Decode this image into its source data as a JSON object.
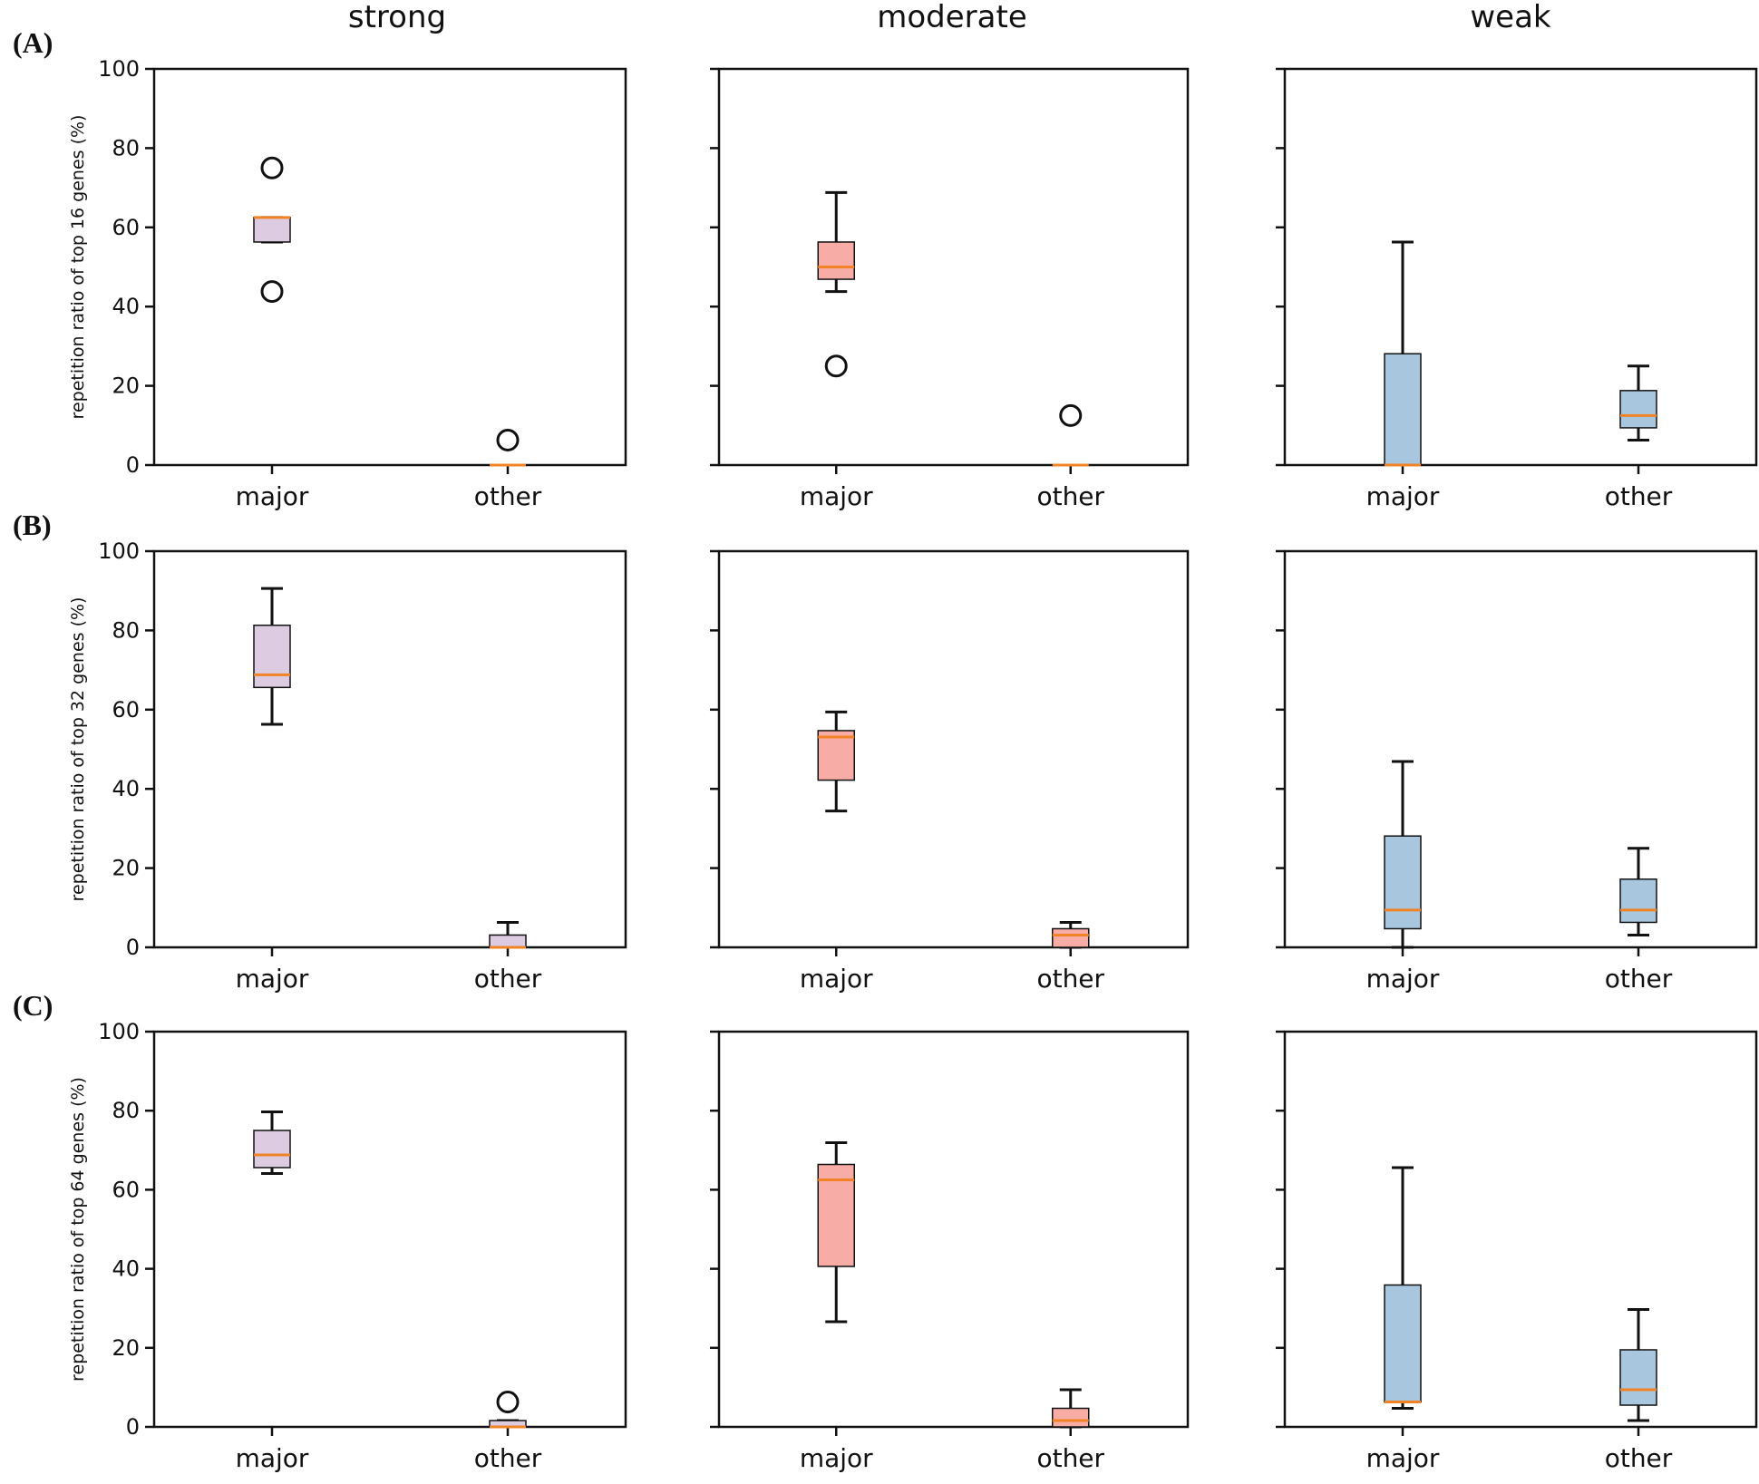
{
  "col_titles": [
    "strong",
    "moderate",
    "weak"
  ],
  "row_labels": [
    "(A)",
    "(B)",
    "(C)"
  ],
  "colors": {
    "strong": "#dccbe1",
    "moderate": "#f7aca6",
    "weak": "#a9c6df",
    "median": "#f08326",
    "axis": "#111111"
  },
  "chart_data": {
    "type": "box",
    "ylim": [
      0,
      100
    ],
    "yticks": [
      0,
      20,
      40,
      60,
      80,
      100
    ],
    "categories": [
      "major",
      "other"
    ],
    "rows": [
      {
        "label": "(A)",
        "ylabel": "repetition ratio of top 16 genes (%)",
        "panels": [
          {
            "group": "strong",
            "boxes": [
              {
                "category": "major",
                "whislo": 56.3,
                "q1": 56.3,
                "med": 62.5,
                "q3": 62.5,
                "whishi": 62.5,
                "fliers": [
                  75,
                  43.8
                ]
              },
              {
                "category": "other",
                "whislo": 0,
                "q1": 0,
                "med": 0,
                "q3": 0,
                "whishi": 0,
                "fliers": [
                  6.3
                ]
              }
            ]
          },
          {
            "group": "moderate",
            "boxes": [
              {
                "category": "major",
                "whislo": 43.8,
                "q1": 46.9,
                "med": 50.0,
                "q3": 56.3,
                "whishi": 68.8,
                "fliers": [
                  25
                ]
              },
              {
                "category": "other",
                "whislo": 0,
                "q1": 0,
                "med": 0,
                "q3": 0,
                "whishi": 0,
                "fliers": [
                  12.5
                ]
              }
            ]
          },
          {
            "group": "weak",
            "boxes": [
              {
                "category": "major",
                "whislo": 0,
                "q1": 0,
                "med": 0,
                "q3": 28.1,
                "whishi": 56.3,
                "fliers": []
              },
              {
                "category": "other",
                "whislo": 6.3,
                "q1": 9.4,
                "med": 12.5,
                "q3": 18.8,
                "whishi": 25.0,
                "fliers": []
              }
            ]
          }
        ]
      },
      {
        "label": "(B)",
        "ylabel": "repetition ratio of top 32 genes (%)",
        "panels": [
          {
            "group": "strong",
            "boxes": [
              {
                "category": "major",
                "whislo": 56.3,
                "q1": 65.6,
                "med": 68.8,
                "q3": 81.3,
                "whishi": 90.6,
                "fliers": []
              },
              {
                "category": "other",
                "whislo": 0,
                "q1": 0,
                "med": 0,
                "q3": 3.1,
                "whishi": 6.3,
                "fliers": []
              }
            ]
          },
          {
            "group": "moderate",
            "boxes": [
              {
                "category": "major",
                "whislo": 34.4,
                "q1": 42.2,
                "med": 53.1,
                "q3": 54.7,
                "whishi": 59.4,
                "fliers": []
              },
              {
                "category": "other",
                "whislo": 0,
                "q1": 0,
                "med": 3.1,
                "q3": 4.7,
                "whishi": 6.3,
                "fliers": []
              }
            ]
          },
          {
            "group": "weak",
            "boxes": [
              {
                "category": "major",
                "whislo": 0,
                "q1": 4.7,
                "med": 9.4,
                "q3": 28.1,
                "whishi": 46.9,
                "fliers": []
              },
              {
                "category": "other",
                "whislo": 3.1,
                "q1": 6.3,
                "med": 9.4,
                "q3": 17.2,
                "whishi": 25.0,
                "fliers": []
              }
            ]
          }
        ]
      },
      {
        "label": "(C)",
        "ylabel": "repetition ratio of top 64 genes (%)",
        "panels": [
          {
            "group": "strong",
            "boxes": [
              {
                "category": "major",
                "whislo": 64.1,
                "q1": 65.6,
                "med": 68.8,
                "q3": 75.0,
                "whishi": 79.7,
                "fliers": []
              },
              {
                "category": "other",
                "whislo": 0,
                "q1": 0,
                "med": 0,
                "q3": 1.6,
                "whishi": 1.6,
                "fliers": [
                  6.3
                ]
              }
            ]
          },
          {
            "group": "moderate",
            "boxes": [
              {
                "category": "major",
                "whislo": 26.6,
                "q1": 40.6,
                "med": 62.5,
                "q3": 66.4,
                "whishi": 71.9,
                "fliers": []
              },
              {
                "category": "other",
                "whislo": 0,
                "q1": 0,
                "med": 1.6,
                "q3": 4.7,
                "whishi": 9.4,
                "fliers": []
              }
            ]
          },
          {
            "group": "weak",
            "boxes": [
              {
                "category": "major",
                "whislo": 4.7,
                "q1": 6.3,
                "med": 6.3,
                "q3": 35.9,
                "whishi": 65.6,
                "fliers": []
              },
              {
                "category": "other",
                "whislo": 1.6,
                "q1": 5.5,
                "med": 9.4,
                "q3": 19.5,
                "whishi": 29.7,
                "fliers": []
              }
            ]
          }
        ]
      }
    ]
  }
}
